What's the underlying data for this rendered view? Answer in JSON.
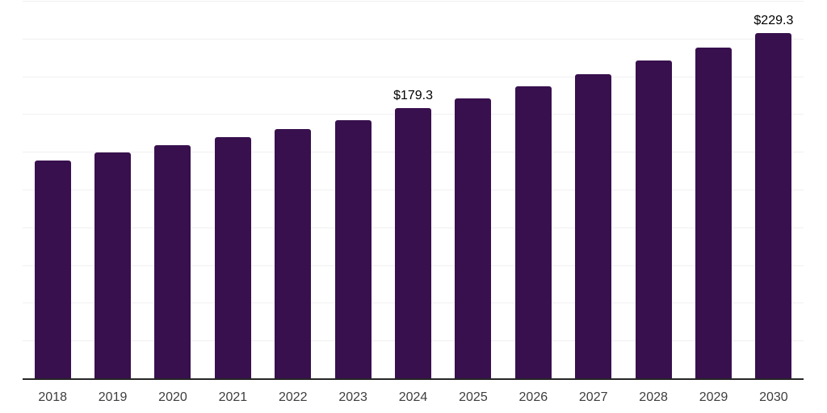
{
  "chart_data": {
    "type": "bar",
    "title": "",
    "categories": [
      "2018",
      "2019",
      "2020",
      "2021",
      "2022",
      "2023",
      "2024",
      "2025",
      "2026",
      "2027",
      "2028",
      "2029",
      "2030"
    ],
    "values": [
      144.8,
      149.9,
      154.7,
      160.1,
      165.8,
      171.7,
      179.3,
      186.1,
      193.7,
      201.8,
      210.8,
      219.4,
      229.3
    ],
    "data_labels": {
      "2024": "$179.3",
      "2030": "$229.3"
    },
    "xlabel": "",
    "ylabel": "",
    "ylim": [
      0,
      250
    ],
    "gridline_step": 25,
    "grid": true,
    "legend_position": "none",
    "colors": {
      "bar": "#38104E",
      "gridline": "#F0F0F0",
      "axis": "#262626",
      "tick_label": "#3D3D3D",
      "data_label": "#000000",
      "background": "#FFFFFF"
    }
  }
}
